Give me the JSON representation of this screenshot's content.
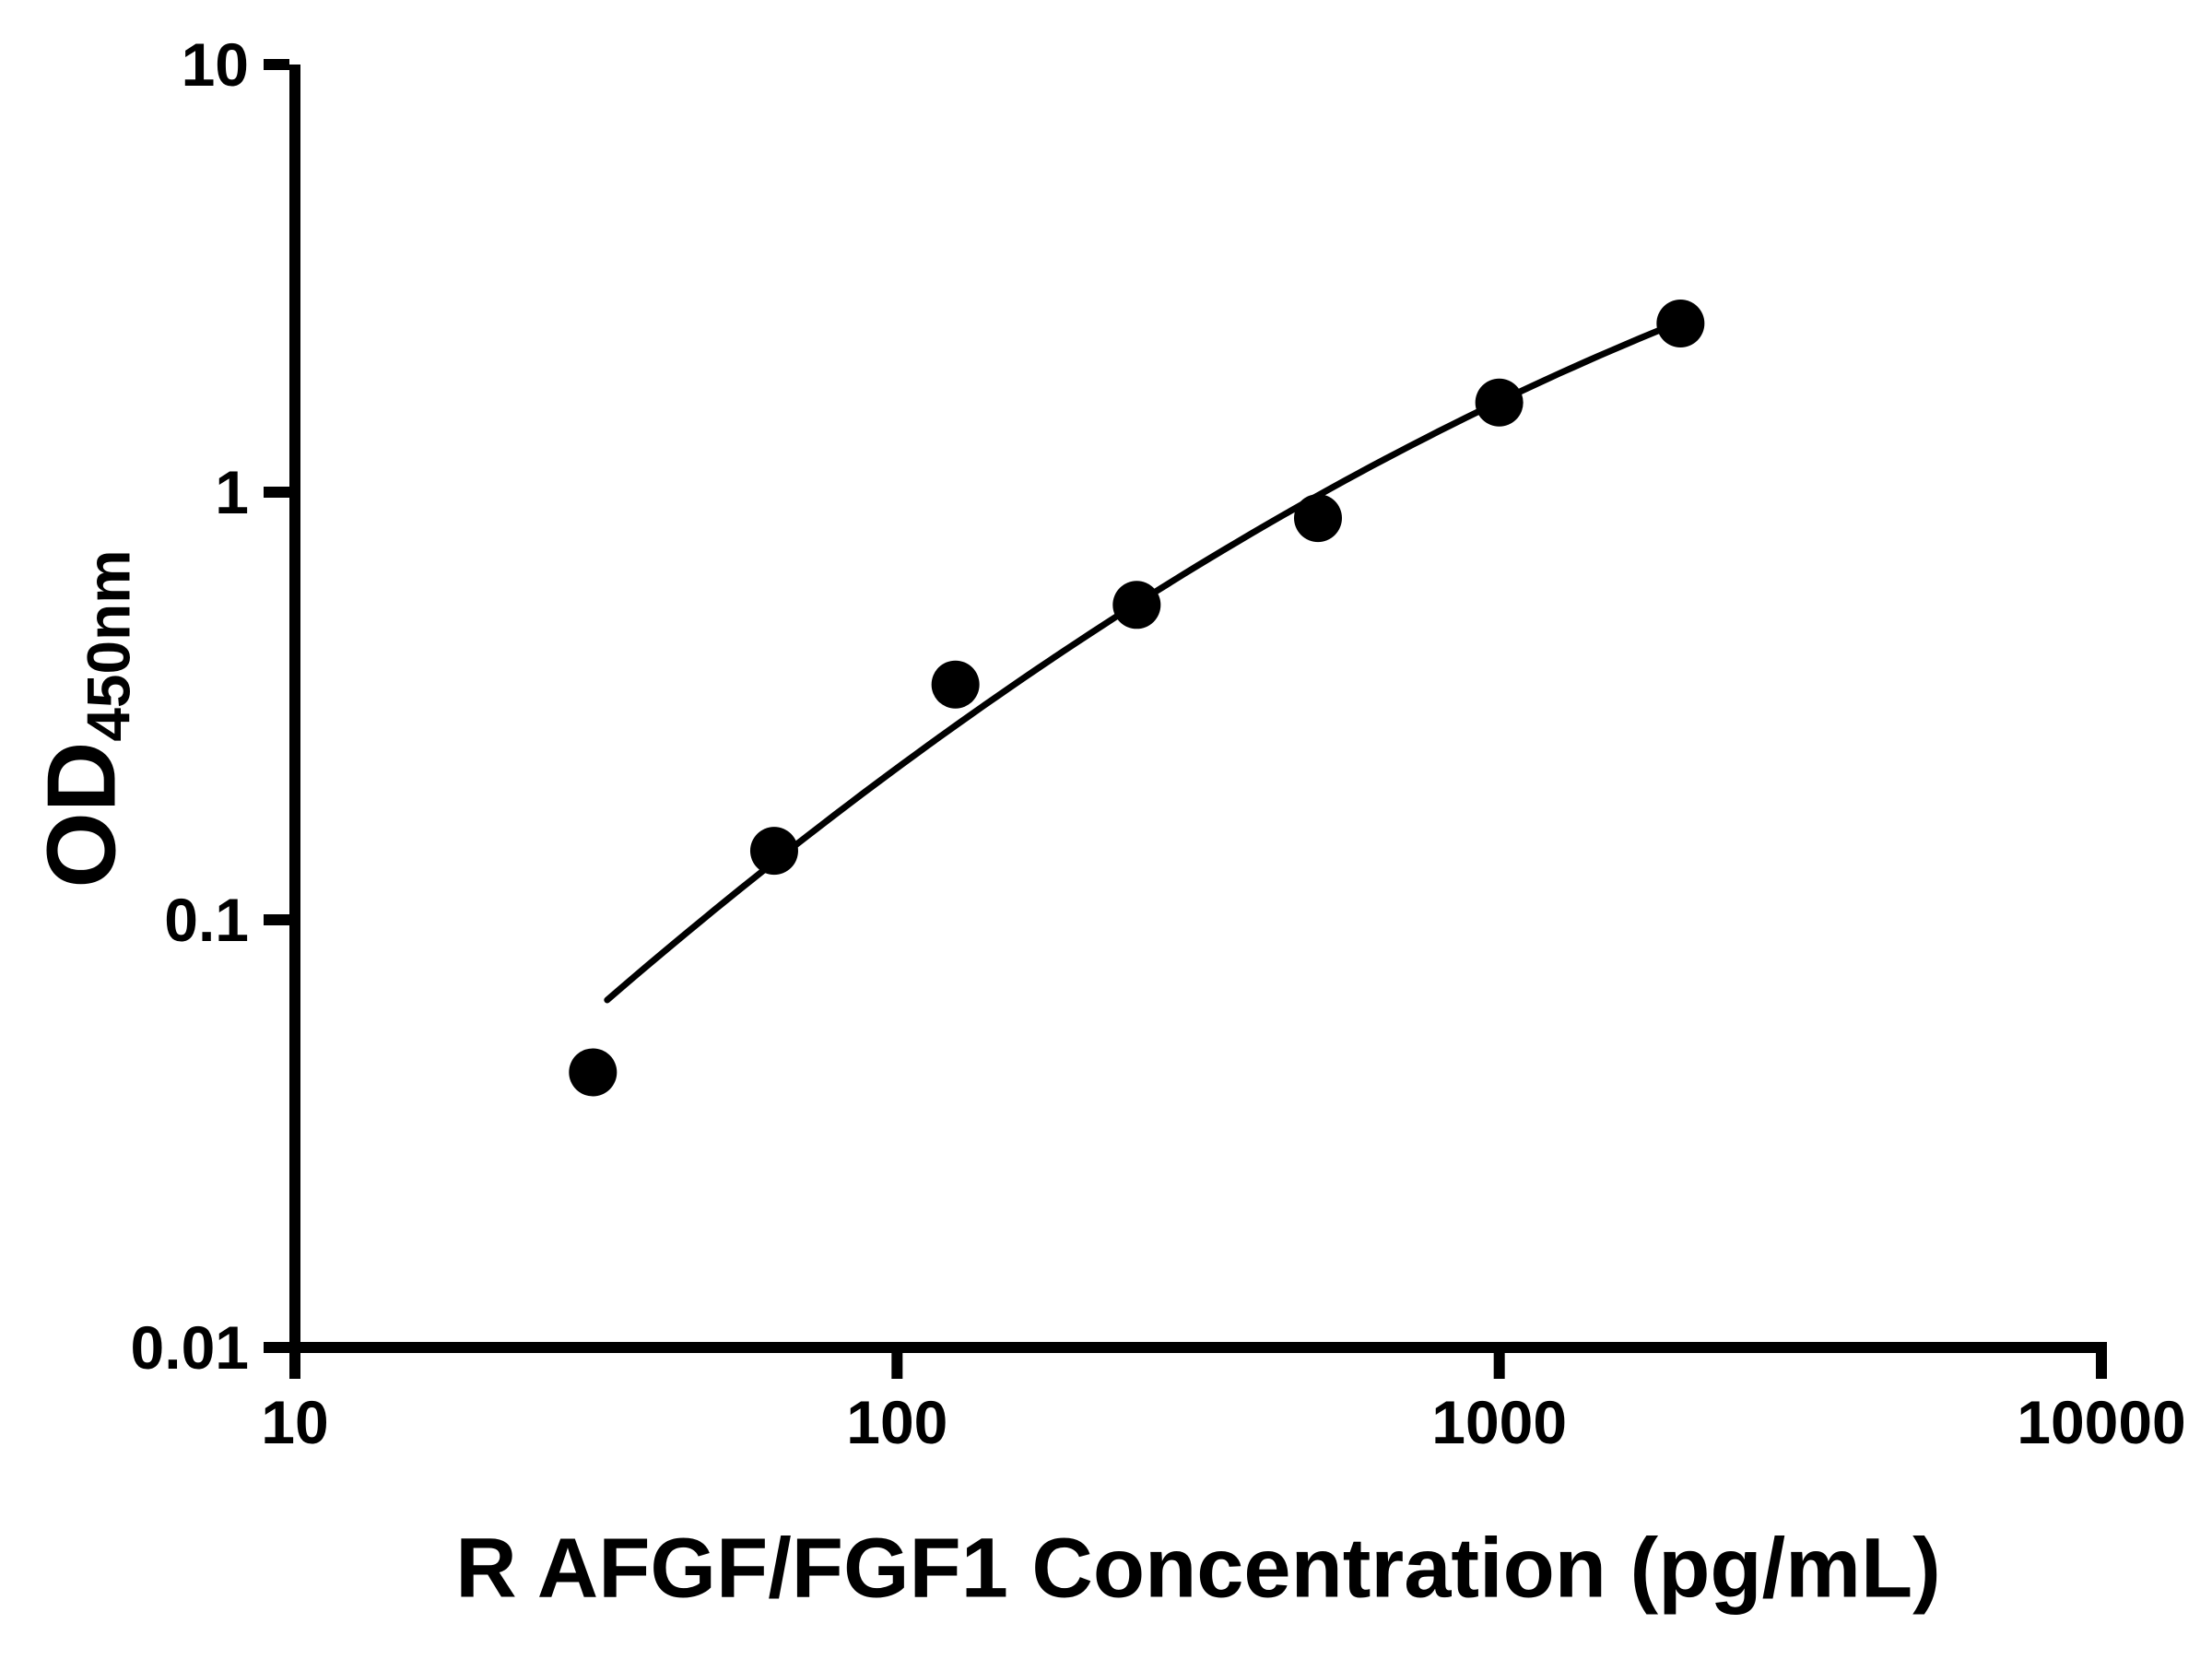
{
  "chart_data": {
    "type": "scatter",
    "title": "",
    "xlabel": "R AFGF/FGF1 Concentration (pg/mL)",
    "ylabel_main": "OD",
    "ylabel_sub": "450nm",
    "xscale": "log",
    "yscale": "log",
    "xlim": [
      10,
      10000
    ],
    "ylim": [
      0.01,
      10
    ],
    "grid": false,
    "legend": false,
    "marker_color": "#000000",
    "line_color": "#000000",
    "axis_color": "#000000",
    "background": "#ffffff",
    "x_ticks": [
      {
        "value": 10,
        "label": "10"
      },
      {
        "value": 100,
        "label": "100"
      },
      {
        "value": 1000,
        "label": "1000"
      },
      {
        "value": 10000,
        "label": "10000"
      }
    ],
    "y_ticks": [
      {
        "value": 10,
        "label": "10"
      },
      {
        "value": 1,
        "label": "1"
      },
      {
        "value": 0.1,
        "label": "0.1"
      },
      {
        "value": 0.01,
        "label": "0.01"
      }
    ],
    "points": [
      {
        "x": 31.25,
        "y": 0.044
      },
      {
        "x": 62.5,
        "y": 0.145
      },
      {
        "x": 125,
        "y": 0.355
      },
      {
        "x": 250,
        "y": 0.545
      },
      {
        "x": 500,
        "y": 0.87
      },
      {
        "x": 1000,
        "y": 1.62
      },
      {
        "x": 2000,
        "y": 2.48
      }
    ],
    "fit_curve": {
      "model": "quadratic-loglog",
      "equation": "log10(y) = a + b*u + c*u^2, u = log10(x)",
      "a": -3.451,
      "b": 1.767,
      "c": -0.182,
      "x_start": 33,
      "x_end": 2000
    }
  }
}
